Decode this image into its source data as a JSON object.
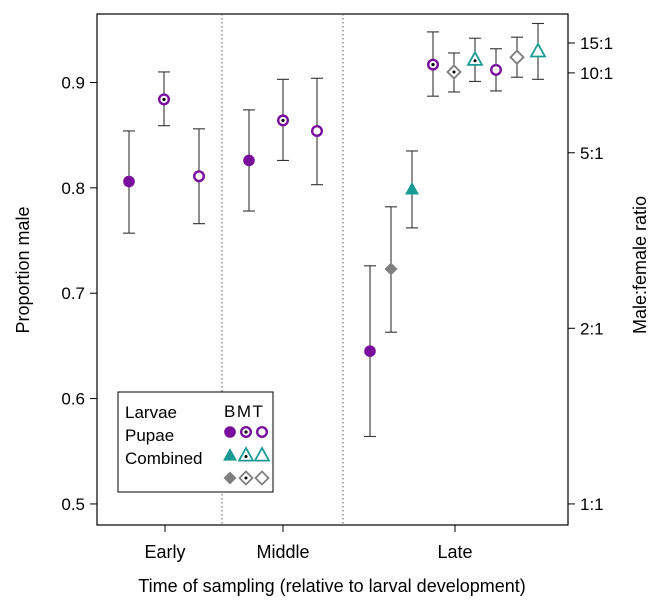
{
  "chart_data": {
    "type": "scatter",
    "xlabel": "Time of sampling (relative to larval development)",
    "ylabel": "Proportion male",
    "y2label": "Male:female ratio",
    "ylim": [
      0.48,
      0.965
    ],
    "yticks": [
      0.5,
      0.6,
      0.7,
      0.8,
      0.9
    ],
    "ytick_labels": [
      "0.5",
      "0.6",
      "0.7",
      "0.8",
      "0.9"
    ],
    "y2ticks": [
      {
        "label": "1:1",
        "proportion": 0.5
      },
      {
        "label": "2:1",
        "proportion": 0.6667
      },
      {
        "label": "5:1",
        "proportion": 0.8333
      },
      {
        "label": "10:1",
        "proportion": 0.9091
      },
      {
        "label": "15:1",
        "proportion": 0.9375
      }
    ],
    "groups": [
      {
        "name": "Early"
      },
      {
        "name": "Middle"
      },
      {
        "name": "Late"
      }
    ],
    "points": [
      {
        "group": "Early",
        "sub": 1,
        "stage": "Larvae",
        "type": "B",
        "y": 0.806,
        "lo": 0.757,
        "hi": 0.854
      },
      {
        "group": "Early",
        "sub": 2,
        "stage": "Larvae",
        "type": "M",
        "y": 0.884,
        "lo": 0.859,
        "hi": 0.91
      },
      {
        "group": "Early",
        "sub": 3,
        "stage": "Larvae",
        "type": "T",
        "y": 0.811,
        "lo": 0.766,
        "hi": 0.856
      },
      {
        "group": "Middle",
        "sub": 1,
        "stage": "Larvae",
        "type": "B",
        "y": 0.826,
        "lo": 0.778,
        "hi": 0.874
      },
      {
        "group": "Middle",
        "sub": 2,
        "stage": "Larvae",
        "type": "M",
        "y": 0.864,
        "lo": 0.826,
        "hi": 0.903
      },
      {
        "group": "Middle",
        "sub": 3,
        "stage": "Larvae",
        "type": "T",
        "y": 0.854,
        "lo": 0.803,
        "hi": 0.904
      },
      {
        "group": "Late",
        "sub": 1,
        "stage": "Larvae",
        "type": "B",
        "y": 0.645,
        "lo": 0.564,
        "hi": 0.726
      },
      {
        "group": "Late",
        "sub": 2,
        "stage": "Combined",
        "type": "B",
        "y": 0.723,
        "lo": 0.663,
        "hi": 0.782
      },
      {
        "group": "Late",
        "sub": 3,
        "stage": "Pupae",
        "type": "B",
        "y": 0.799,
        "lo": 0.762,
        "hi": 0.835
      },
      {
        "group": "Late",
        "sub": 4,
        "stage": "Larvae",
        "type": "M",
        "y": 0.917,
        "lo": 0.887,
        "hi": 0.948
      },
      {
        "group": "Late",
        "sub": 5,
        "stage": "Combined",
        "type": "M",
        "y": 0.91,
        "lo": 0.891,
        "hi": 0.928
      },
      {
        "group": "Late",
        "sub": 6,
        "stage": "Pupae",
        "type": "M",
        "y": 0.922,
        "lo": 0.901,
        "hi": 0.942
      },
      {
        "group": "Late",
        "sub": 7,
        "stage": "Larvae",
        "type": "T",
        "y": 0.912,
        "lo": 0.892,
        "hi": 0.932
      },
      {
        "group": "Late",
        "sub": 8,
        "stage": "Combined",
        "type": "T",
        "y": 0.924,
        "lo": 0.905,
        "hi": 0.943
      },
      {
        "group": "Late",
        "sub": 9,
        "stage": "Pupae",
        "type": "T",
        "y": 0.93,
        "lo": 0.903,
        "hi": 0.956
      }
    ],
    "grid": false,
    "legend": {
      "placement": "bottom-left",
      "header": "BMT",
      "rows": [
        {
          "label": "Larvae",
          "stage": "Larvae"
        },
        {
          "label": "Pupae",
          "stage": "Pupae"
        },
        {
          "label": "Combined",
          "stage": "Combined"
        }
      ]
    },
    "colors": {
      "Larvae": "#7a0e9c",
      "Pupae": "#1a9a94",
      "Combined": "#7f7f7f",
      "errorbar": "#333333"
    }
  }
}
